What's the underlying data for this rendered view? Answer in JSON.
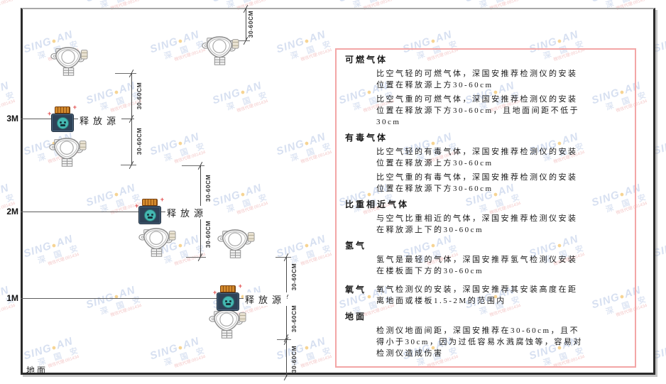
{
  "watermark": {
    "brand_left": "SING",
    "dot": "●",
    "brand_right": "AN",
    "cjk": "深 国 安",
    "red_text": "微信代理:081434"
  },
  "diagram": {
    "levels": [
      {
        "label": "3M"
      },
      {
        "label": "2M"
      },
      {
        "label": "1M"
      }
    ],
    "ground_label": "地面",
    "release_source_label": "释放源",
    "dim_label": "30-60CM"
  },
  "panel": {
    "sections": [
      {
        "heading": "可燃气体",
        "inline": false,
        "paras": [
          "比空气轻的可燃气体，深国安推荐检测仪的安装位置在释放源上方30-60cm",
          "比空气重的可燃气体，深国安推荐检测仪的安装位置在释放源下方30-60cm，且地面间距不低于30cm"
        ]
      },
      {
        "heading": "有毒气体",
        "inline": false,
        "paras": [
          "比空气轻的有毒气体，深国安推荐检测仪的安装位置在释放源上方30-60cm",
          "比空气重的有毒气体，深国安推荐检测仪的安装位置在释放源下方30-60cm"
        ]
      },
      {
        "heading": "比重相近气体",
        "inline": false,
        "paras": [
          "与空气比重相近的气体，深国安推荐检测仪安装在释放源上下的30-60cm"
        ]
      },
      {
        "heading": "氢气",
        "inline": false,
        "paras": [
          "氢气是最轻的气体，深国安推荐氢气检测仪安装在楼板面下方的30-60cm"
        ]
      },
      {
        "heading": "氧气",
        "inline": true,
        "paras": [
          "氧气检测仪的安装，深国安推荐其安装高度在距离地面或楼板1.5-2M的范围内"
        ]
      },
      {
        "heading": "地面",
        "inline": false,
        "paras": [
          "检测仪地面间距，深国安推荐在30-60cm，且不得小于30cm，因为过低容易水溅腐蚀等，容易对检测仪造成伤害"
        ]
      }
    ]
  }
}
